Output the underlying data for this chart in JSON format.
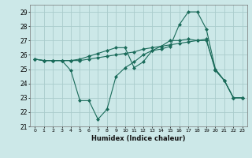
{
  "xlabel": "Humidex (Indice chaleur)",
  "bg_color": "#cce8e8",
  "grid_color": "#aacccc",
  "line_color": "#1a6b5a",
  "xlim": [
    -0.5,
    23.5
  ],
  "ylim": [
    21,
    29.5
  ],
  "yticks": [
    21,
    22,
    23,
    24,
    25,
    26,
    27,
    28,
    29
  ],
  "xticks": [
    0,
    1,
    2,
    3,
    4,
    5,
    6,
    7,
    8,
    9,
    10,
    11,
    12,
    13,
    14,
    15,
    16,
    17,
    18,
    19,
    20,
    21,
    22,
    23
  ],
  "series": [
    [
      25.7,
      25.6,
      25.6,
      25.6,
      25.6,
      25.6,
      25.7,
      25.8,
      25.9,
      26.0,
      26.1,
      26.2,
      26.4,
      26.5,
      26.6,
      26.7,
      26.8,
      26.9,
      27.0,
      27.1,
      24.9,
      24.2,
      23.0,
      23.0
    ],
    [
      25.7,
      25.6,
      25.6,
      25.6,
      25.6,
      25.7,
      25.9,
      26.1,
      26.3,
      26.5,
      26.5,
      25.1,
      25.5,
      26.3,
      26.4,
      26.6,
      28.1,
      29.0,
      29.0,
      27.8,
      25.0,
      24.2,
      23.0,
      23.0
    ],
    [
      25.7,
      25.6,
      25.6,
      25.6,
      24.9,
      22.8,
      22.8,
      21.5,
      22.2,
      24.5,
      25.1,
      25.5,
      26.0,
      26.3,
      26.6,
      27.0,
      27.0,
      27.1,
      27.0,
      27.0,
      25.0,
      24.2,
      23.0,
      23.0
    ]
  ]
}
